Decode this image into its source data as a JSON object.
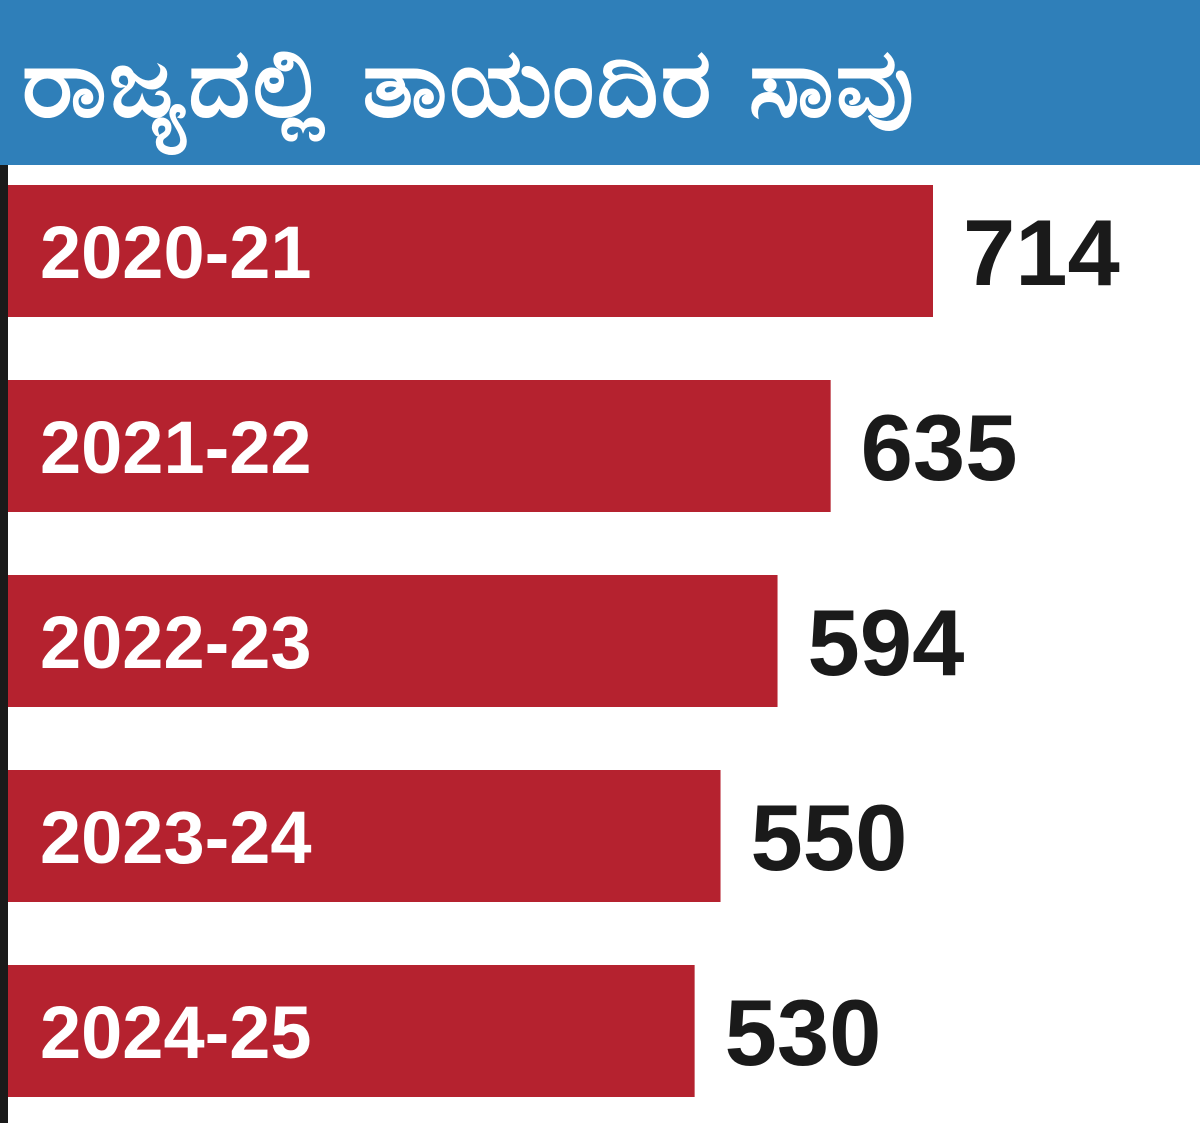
{
  "chart_data": {
    "type": "bar",
    "orientation": "horizontal",
    "title": "ರಾಜ್ಯದಲ್ಲಿ ತಾಯಂದಿರ ಸಾವು",
    "categories": [
      "2020-21",
      "2021-22",
      "2022-23",
      "2023-24",
      "2024-25"
    ],
    "values": [
      714,
      635,
      594,
      550,
      530
    ],
    "xlabel": "",
    "ylabel": "",
    "grid": false,
    "legend": "none",
    "bar_color": "#b5222f",
    "title_background": "#2f7fb9",
    "axis_color": "#1a1a1a"
  }
}
